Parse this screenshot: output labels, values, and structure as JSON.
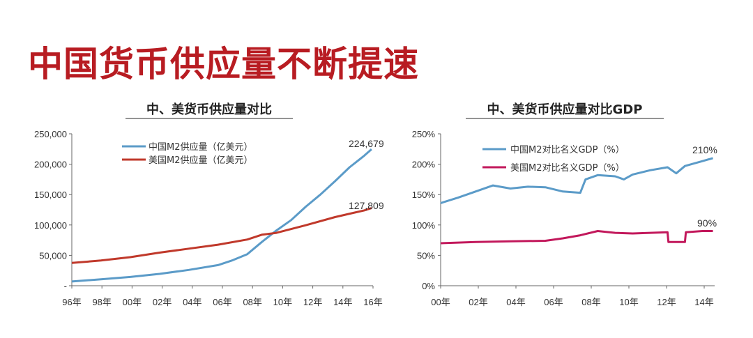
{
  "page": {
    "title": "中国货币供应量不断提速"
  },
  "colors": {
    "title": "#b81c22",
    "china": "#5b9bc8",
    "usa_left": "#c0392b",
    "usa_right": "#c2185b"
  },
  "chart_data": [
    {
      "type": "line",
      "title": "中、美货币供应量对比",
      "xlabel": "",
      "ylabel": "",
      "x_ticks": [
        "96年",
        "98年",
        "00年",
        "02年",
        "04年",
        "06年",
        "08年",
        "10年",
        "12年",
        "14年",
        "16年"
      ],
      "y_ticks": [
        "-",
        "50,000",
        "100,000",
        "150,000",
        "200,000",
        "250,000"
      ],
      "ylim": [
        0,
        250000
      ],
      "xlim": [
        1996,
        2016.6
      ],
      "legend_position": "top-center",
      "series": [
        {
          "name": "中国M2供应量（亿美元）",
          "color": "#5b9bc8",
          "end_label": "224,679",
          "points": [
            [
              1996,
              7000
            ],
            [
              1998,
              10500
            ],
            [
              2000,
              14500
            ],
            [
              2002,
              19500
            ],
            [
              2004,
              26000
            ],
            [
              2006,
              34000
            ],
            [
              2007,
              42000
            ],
            [
              2008,
              52000
            ],
            [
              2009,
              72000
            ],
            [
              2010,
              91000
            ],
            [
              2011,
              108000
            ],
            [
              2012,
              130000
            ],
            [
              2013,
              150000
            ],
            [
              2014,
              172000
            ],
            [
              2015,
              195000
            ],
            [
              2016,
              214000
            ],
            [
              2016.5,
              224679
            ]
          ]
        },
        {
          "name": "美国M2供应量（亿美元）",
          "color": "#c0392b",
          "end_label": "127,809",
          "points": [
            [
              1996,
              37500
            ],
            [
              1998,
              41500
            ],
            [
              2000,
              47000
            ],
            [
              2002,
              54500
            ],
            [
              2004,
              61000
            ],
            [
              2006,
              67500
            ],
            [
              2008,
              76000
            ],
            [
              2009,
              84000
            ],
            [
              2010,
              87000
            ],
            [
              2012,
              99500
            ],
            [
              2014,
              113000
            ],
            [
              2016,
              124000
            ],
            [
              2016.5,
              127809
            ]
          ]
        }
      ]
    },
    {
      "type": "line",
      "title": "中、美货币供应量对比GDP",
      "xlabel": "",
      "ylabel": "",
      "x_ticks": [
        "00年",
        "02年",
        "04年",
        "06年",
        "08年",
        "10年",
        "12年",
        "14年"
      ],
      "y_ticks": [
        "0%",
        "50%",
        "100%",
        "150%",
        "200%",
        "250%"
      ],
      "ylim": [
        0,
        250
      ],
      "xlim": [
        2000,
        2015.7
      ],
      "legend_position": "top-left",
      "series": [
        {
          "name": "中国M2对比名义GDP（%）",
          "color": "#5b9bc8",
          "end_label": "210%",
          "points": [
            [
              2000,
              136
            ],
            [
              2001,
              145
            ],
            [
              2002,
              155
            ],
            [
              2003,
              165
            ],
            [
              2004,
              160
            ],
            [
              2005,
              163
            ],
            [
              2006,
              162
            ],
            [
              2007,
              155
            ],
            [
              2008,
              153
            ],
            [
              2008.3,
              175
            ],
            [
              2009,
              182
            ],
            [
              2010,
              180
            ],
            [
              2010.5,
              175
            ],
            [
              2011,
              183
            ],
            [
              2012,
              190
            ],
            [
              2013,
              195
            ],
            [
              2013.5,
              185
            ],
            [
              2014,
              197
            ],
            [
              2015,
              205
            ],
            [
              2015.6,
              210
            ]
          ]
        },
        {
          "name": "美国M2对比名义GDP（%）",
          "color": "#c2185b",
          "end_label": "90%",
          "points": [
            [
              2000,
              70
            ],
            [
              2002,
              72
            ],
            [
              2004,
              73
            ],
            [
              2006,
              74
            ],
            [
              2007,
              78
            ],
            [
              2008,
              83
            ],
            [
              2009,
              90
            ],
            [
              2010,
              87
            ],
            [
              2011,
              86
            ],
            [
              2012,
              87
            ],
            [
              2013,
              88
            ],
            [
              2013.05,
              72
            ],
            [
              2014,
              72
            ],
            [
              2014.05,
              88
            ],
            [
              2015,
              90
            ],
            [
              2015.6,
              90
            ]
          ]
        }
      ]
    }
  ]
}
